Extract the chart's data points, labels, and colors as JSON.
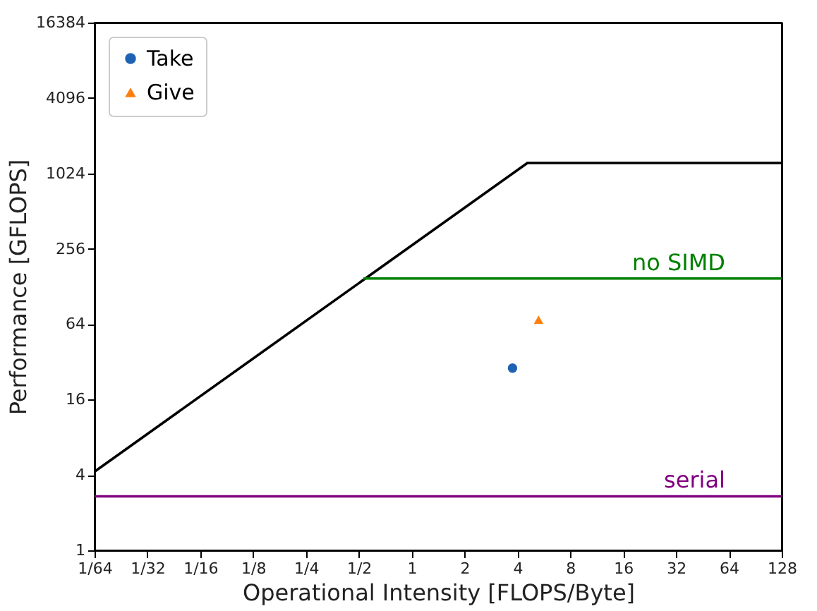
{
  "chart_data": {
    "type": "line",
    "xlabel": "Operational Intensity [FLOPS/Byte]",
    "ylabel": "Performance [GFLOPS]",
    "log": "xy",
    "grid": false,
    "legend": "top left",
    "xlim": [
      0.015625,
      128
    ],
    "ylim": [
      1,
      16384
    ],
    "xticks": [
      {
        "value": 0.015625,
        "label": "1/64"
      },
      {
        "value": 0.03125,
        "label": "1/32"
      },
      {
        "value": 0.0625,
        "label": "1/16"
      },
      {
        "value": 0.125,
        "label": "1/8"
      },
      {
        "value": 0.25,
        "label": "1/4"
      },
      {
        "value": 0.5,
        "label": "1/2"
      },
      1,
      2,
      4,
      8,
      16,
      32,
      64,
      128
    ],
    "yticks": [
      1,
      4,
      16,
      64,
      256,
      1024,
      4096,
      16384
    ],
    "series": [
      {
        "color": "#000000",
        "x": [
          0.015625,
          4.56,
          128
        ],
        "values": [
          4.25,
          1240,
          1240
        ]
      },
      {
        "name": "no SIMD",
        "color": "#008000",
        "x": [
          0.53,
          128
        ],
        "values": [
          148,
          148
        ]
      },
      {
        "name": "serial",
        "color": "#800080",
        "x": [
          0.015625,
          128
        ],
        "values": [
          2.7,
          2.7
        ]
      },
      {
        "type": "scatter",
        "name": "Take",
        "color": "#1f62b4",
        "marker": "circle",
        "x": [
          3.75
        ],
        "values": [
          28.5
        ]
      },
      {
        "type": "scatter",
        "name": "Give",
        "color": "#ff7f0e",
        "marker": "triangle",
        "x": [
          5.28
        ],
        "values": [
          69.5
        ]
      }
    ]
  }
}
